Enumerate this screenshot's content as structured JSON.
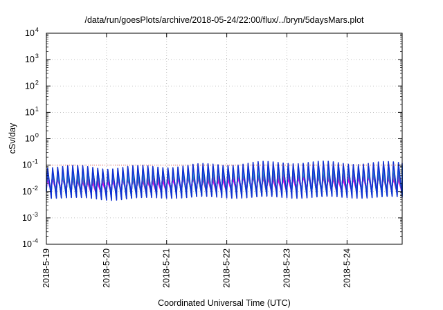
{
  "chart_data": {
    "type": "line",
    "title": "/data/run/goesPlots/archive/2018-05-24/22:00/flux/../bryn/5daysMars.plot",
    "xlabel": "Coordinated Universal Time (UTC)",
    "ylabel": "cSv/day",
    "xlim": [
      "2018-05-19",
      "2018-05-24T22:00"
    ],
    "ylim": [
      0.0001,
      10000
    ],
    "yscale": "log",
    "grid": true,
    "legend": "none",
    "x_ticks": [
      "2018-5-19",
      "2018-5-20",
      "2018-5-21",
      "2018-5-22",
      "2018-5-23",
      "2018-5-24"
    ],
    "y_ticks": [
      {
        "mant": "10",
        "exp": "-4"
      },
      {
        "mant": "10",
        "exp": "-3"
      },
      {
        "mant": "10",
        "exp": "-2"
      },
      {
        "mant": "10",
        "exp": "-1"
      },
      {
        "mant": "10",
        "exp": "0"
      },
      {
        "mant": "10",
        "exp": "1"
      },
      {
        "mant": "10",
        "exp": "2"
      },
      {
        "mant": "10",
        "exp": "3"
      },
      {
        "mant": "10",
        "exp": "4"
      }
    ],
    "reference_line": {
      "y": 0.1,
      "color": "#e05050"
    },
    "pattern": {
      "cycle_hours": 2,
      "peak_range": [
        0.045,
        0.15
      ],
      "trough_range": [
        0.003,
        0.012
      ],
      "envelope_by_day": [
        {
          "day": "2018-05-19",
          "peak": 0.09,
          "trough": 0.006
        },
        {
          "day": "2018-05-20",
          "peak": 0.08,
          "trough": 0.005
        },
        {
          "day": "2018-05-21",
          "peak": 0.09,
          "trough": 0.006
        },
        {
          "day": "2018-05-22",
          "peak": 0.11,
          "trough": 0.006
        },
        {
          "day": "2018-05-23",
          "peak": 0.13,
          "trough": 0.006
        },
        {
          "day": "2018-05-24",
          "peak": 0.12,
          "trough": 0.006
        }
      ]
    },
    "series": [
      {
        "color": "#ff00ff",
        "level": 0.55
      },
      {
        "color": "#c020c0",
        "level": 0.62
      },
      {
        "color": "#a040c0",
        "level": 0.68
      },
      {
        "color": "#8050c0",
        "level": 0.74
      },
      {
        "color": "#3070b0",
        "level": 0.8
      },
      {
        "color": "#20b0b0",
        "level": 0.86
      },
      {
        "color": "#3090e0",
        "level": 0.92
      },
      {
        "color": "#1030d0",
        "level": 1.0
      }
    ]
  }
}
